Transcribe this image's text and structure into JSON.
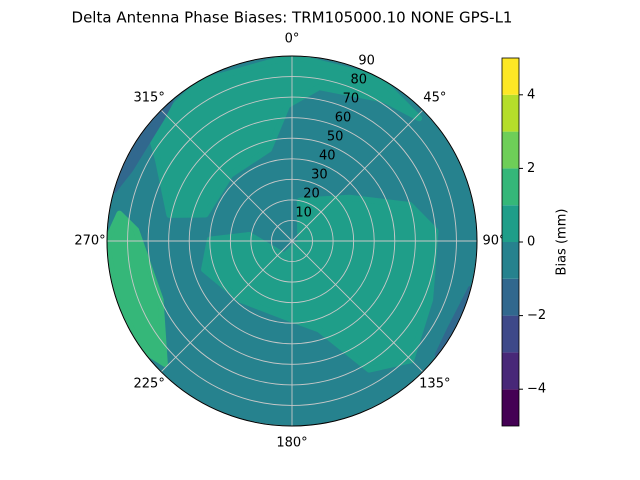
{
  "chart_data": {
    "type": "polar-contour",
    "title": "Delta Antenna Phase Biases: TRM105000.10    NONE GPS-L1",
    "theta_ticks": [
      {
        "value": 0,
        "label": "0°"
      },
      {
        "value": 45,
        "label": "45°"
      },
      {
        "value": 90,
        "label": "90°"
      },
      {
        "value": 135,
        "label": "135°"
      },
      {
        "value": 180,
        "label": "180°"
      },
      {
        "value": 225,
        "label": "225°"
      },
      {
        "value": 270,
        "label": "270°"
      },
      {
        "value": 315,
        "label": "315°"
      }
    ],
    "rlim": [
      0,
      90
    ],
    "rticks": [
      10,
      20,
      30,
      40,
      50,
      60,
      70,
      80,
      90
    ],
    "grid": true,
    "background_range": [
      -1,
      0
    ],
    "regions": [
      {
        "range": [
          0,
          1
        ],
        "azimuth": [
          308,
          330,
          0,
          28,
          46,
          33,
          10,
          358,
          346,
          317,
          287,
          282,
          301
        ],
        "zenith": [
          88,
          89.5,
          90,
          90,
          86,
          82,
          76,
          66,
          46,
          44,
          44,
          61,
          76
        ]
      },
      {
        "range": [
          0,
          1
        ],
        "azimuth": [
          11,
          53,
          73,
          86,
          113,
          135,
          149,
          163,
          181,
          221,
          252,
          271,
          278,
          207,
          90
        ],
        "zenith": [
          20,
          35,
          60,
          70,
          73,
          82,
          73,
          45,
          38,
          38,
          45,
          40,
          21,
          8,
          4
        ]
      },
      {
        "range": [
          1,
          2
        ],
        "azimuth": [
          279,
          270,
          252,
          234,
          226,
          246,
          274
        ],
        "zenith": [
          85,
          90,
          90,
          90,
          86,
          70,
          76
        ]
      },
      {
        "range": [
          -2,
          -1
        ],
        "azimuth": [
          286,
          306,
          319,
          313,
          294
        ],
        "zenith": [
          90,
          90,
          90,
          87,
          86
        ]
      },
      {
        "range": [
          -2,
          -1
        ],
        "azimuth": [
          105,
          128,
          119
        ],
        "zenith": [
          90,
          90,
          88
        ]
      }
    ],
    "colorbar": {
      "label": "Bias (mm)",
      "levels": [
        -5,
        -4,
        -3,
        -2,
        -1,
        0,
        1,
        2,
        3,
        4,
        5
      ],
      "colors": [
        "#440154",
        "#482878",
        "#3e4989",
        "#31688e",
        "#26828e",
        "#1f9e89",
        "#35b779",
        "#6ece58",
        "#b5de2b",
        "#fde725"
      ],
      "ticks": [
        {
          "value": -4,
          "label": "−4"
        },
        {
          "value": -2,
          "label": "−2"
        },
        0,
        2,
        4
      ]
    }
  }
}
